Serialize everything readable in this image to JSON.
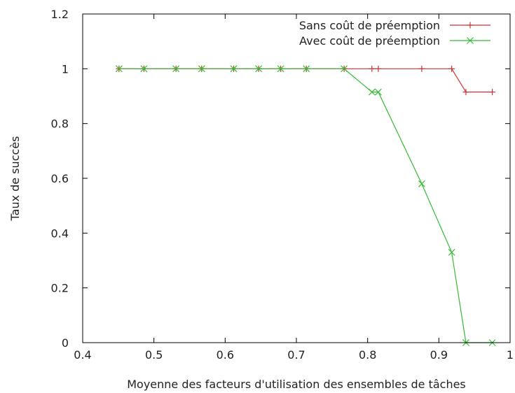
{
  "chart_data": {
    "type": "line",
    "title": "",
    "xlabel": "Moyenne des facteurs d'utilisation des ensembles de tâches",
    "ylabel": "Taux de succès",
    "xlim": [
      0.4,
      1.0
    ],
    "ylim": [
      0,
      1.2
    ],
    "xticks": [
      0.4,
      0.5,
      0.6,
      0.7,
      0.8,
      0.9,
      1.0
    ],
    "xtick_labels": [
      "0.4",
      "0.5",
      "0.6",
      "0.7",
      "0.8",
      "0.9",
      "1"
    ],
    "yticks": [
      0,
      0.2,
      0.4,
      0.6,
      0.8,
      1.0,
      1.2
    ],
    "ytick_labels": [
      "0",
      "0.2",
      "0.4",
      "0.6",
      "0.8",
      "1",
      "1.2"
    ],
    "grid": false,
    "legend_position": "top-right",
    "series": [
      {
        "name": "Sans coût de préemption",
        "color": "#cc3333",
        "marker": "plus",
        "x": [
          0.451,
          0.486,
          0.531,
          0.567,
          0.612,
          0.647,
          0.678,
          0.714,
          0.767,
          0.806,
          0.815,
          0.876,
          0.918,
          0.938,
          0.975
        ],
        "y": [
          1,
          1,
          1,
          1,
          1,
          1,
          1,
          1,
          1,
          1,
          1,
          1,
          1,
          0.915,
          0.915
        ]
      },
      {
        "name": "Avec coût de préemption",
        "color": "#33bb33",
        "marker": "x",
        "x": [
          0.451,
          0.486,
          0.531,
          0.567,
          0.612,
          0.647,
          0.678,
          0.714,
          0.767,
          0.806,
          0.815,
          0.876,
          0.918,
          0.938,
          0.975
        ],
        "y": [
          1,
          1,
          1,
          1,
          1,
          1,
          1,
          1,
          1,
          0.915,
          0.915,
          0.58,
          0.33,
          0,
          0
        ]
      }
    ]
  }
}
